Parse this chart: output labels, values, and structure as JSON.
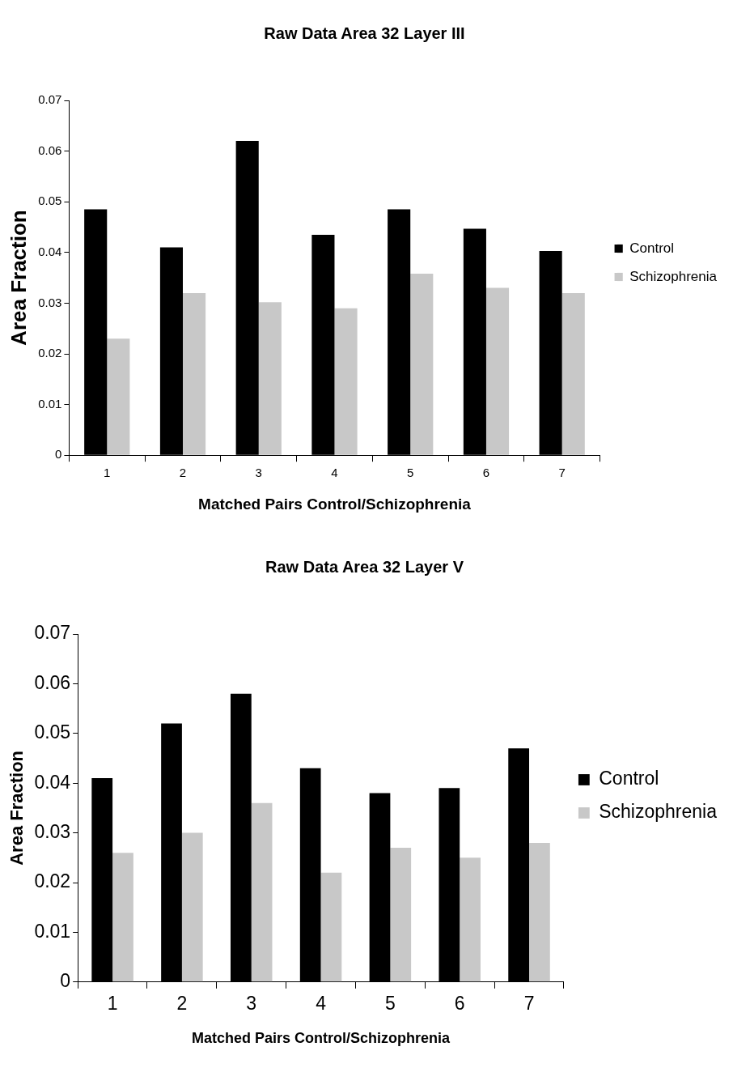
{
  "chart_data": [
    {
      "type": "bar",
      "title": "Raw Data Area 32 Layer III",
      "xlabel": "Matched Pairs Control/Schizophrenia",
      "ylabel": "Area Fraction",
      "categories": [
        "1",
        "2",
        "3",
        "4",
        "5",
        "6",
        "7"
      ],
      "series": [
        {
          "name": "Control",
          "color": "#000000",
          "values": [
            0.0485,
            0.041,
            0.062,
            0.0435,
            0.0485,
            0.0447,
            0.0403
          ]
        },
        {
          "name": "Schizophrenia",
          "color": "#c8c8c8",
          "values": [
            0.023,
            0.032,
            0.0302,
            0.029,
            0.0358,
            0.033,
            0.032
          ]
        }
      ],
      "ylim": [
        0,
        0.07
      ],
      "yticks": [
        0,
        0.01,
        0.02,
        0.03,
        0.04,
        0.05,
        0.06,
        0.07
      ],
      "grid": false,
      "legend": "right"
    },
    {
      "type": "bar",
      "title": "Raw Data Area 32 Layer V",
      "xlabel": "Matched Pairs Control/Schizophrenia",
      "ylabel": "Area Fraction",
      "categories": [
        "1",
        "2",
        "3",
        "4",
        "5",
        "6",
        "7"
      ],
      "series": [
        {
          "name": "Control",
          "color": "#000000",
          "values": [
            0.041,
            0.052,
            0.058,
            0.043,
            0.038,
            0.039,
            0.047
          ]
        },
        {
          "name": "Schizophrenia",
          "color": "#c8c8c8",
          "values": [
            0.026,
            0.03,
            0.036,
            0.022,
            0.027,
            0.025,
            0.028
          ]
        }
      ],
      "ylim": [
        0,
        0.07
      ],
      "yticks": [
        0,
        0.01,
        0.02,
        0.03,
        0.04,
        0.05,
        0.06,
        0.07
      ],
      "grid": false,
      "legend": "right"
    }
  ]
}
